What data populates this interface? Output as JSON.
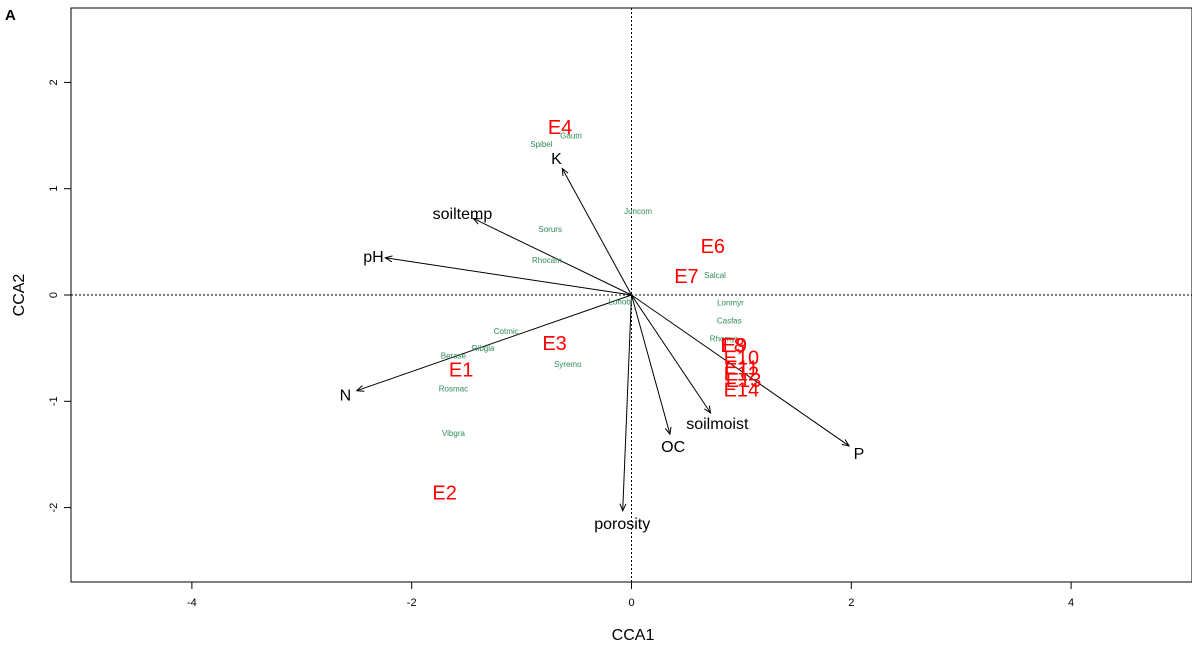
{
  "panel_label": "A",
  "chart_data": {
    "type": "scatter",
    "subtype": "cca-biplot",
    "title": "",
    "xlabel": "CCA1",
    "ylabel": "CCA2",
    "xlim": [
      -5.1,
      5.1
    ],
    "ylim": [
      -2.7,
      2.7
    ],
    "xticks": [
      -4,
      -2,
      0,
      2,
      4
    ],
    "yticks": [
      -2,
      -1,
      0,
      1,
      2
    ],
    "reference_lines": "dotted lines at x = 0 and y = 0",
    "colors": {
      "sites": "#ff0000",
      "species": "#2e8b57",
      "variables": "#000000"
    },
    "environmental_vectors": [
      {
        "name": "K",
        "x": -0.63,
        "y": 1.19
      },
      {
        "name": "soiltemp",
        "x": -1.44,
        "y": 0.72
      },
      {
        "name": "pH",
        "x": -2.24,
        "y": 0.35
      },
      {
        "name": "N",
        "x": -2.5,
        "y": -0.9
      },
      {
        "name": "porosity",
        "x": -0.08,
        "y": -2.03
      },
      {
        "name": "OC",
        "x": 0.35,
        "y": -1.31
      },
      {
        "name": "soilmoist",
        "x": 0.72,
        "y": -1.11
      },
      {
        "name": "P",
        "x": 1.98,
        "y": -1.42
      }
    ],
    "sites": [
      {
        "label": "E4",
        "x": -0.65,
        "y": 1.58
      },
      {
        "label": "E6",
        "x": 0.74,
        "y": 0.46
      },
      {
        "label": "E7",
        "x": 0.5,
        "y": 0.18
      },
      {
        "label": "E3",
        "x": -0.7,
        "y": -0.45
      },
      {
        "label": "E1",
        "x": -1.55,
        "y": -0.7
      },
      {
        "label": "E2",
        "x": -1.7,
        "y": -1.86
      },
      {
        "label": "E8",
        "x": 0.92,
        "y": -0.47
      },
      {
        "label": "E9",
        "x": 0.94,
        "y": -0.47
      },
      {
        "label": "E10",
        "x": 1.0,
        "y": -0.59
      },
      {
        "label": "E11",
        "x": 1.0,
        "y": -0.68
      },
      {
        "label": "E12",
        "x": 1.0,
        "y": -0.74
      },
      {
        "label": "E13",
        "x": 1.02,
        "y": -0.8
      },
      {
        "label": "E14",
        "x": 1.0,
        "y": -0.89
      }
    ],
    "species": [
      {
        "label": "Gautri",
        "x": -0.55,
        "y": 1.5
      },
      {
        "label": "Spibel",
        "x": -0.82,
        "y": 1.42
      },
      {
        "label": "Juncom",
        "x": 0.06,
        "y": 0.79
      },
      {
        "label": "Sorurs",
        "x": -0.74,
        "y": 0.62
      },
      {
        "label": "Rhocam",
        "x": -0.77,
        "y": 0.33
      },
      {
        "label": "Salcal",
        "x": 0.76,
        "y": 0.19
      },
      {
        "label": "Lonmyr",
        "x": 0.9,
        "y": -0.07
      },
      {
        "label": "Lonobl",
        "x": -0.1,
        "y": -0.06
      },
      {
        "label": "Casfas",
        "x": 0.89,
        "y": -0.24
      },
      {
        "label": "Cotmic",
        "x": -1.14,
        "y": -0.34
      },
      {
        "label": "Rhomyr",
        "x": 0.84,
        "y": -0.41
      },
      {
        "label": "Ribgla",
        "x": -1.35,
        "y": -0.5
      },
      {
        "label": "Berase",
        "x": -1.62,
        "y": -0.57
      },
      {
        "label": "Syremo",
        "x": -0.58,
        "y": -0.65
      },
      {
        "label": "Rosmac",
        "x": -1.62,
        "y": -0.88
      },
      {
        "label": "Vibgra",
        "x": -1.62,
        "y": -1.3
      }
    ]
  }
}
